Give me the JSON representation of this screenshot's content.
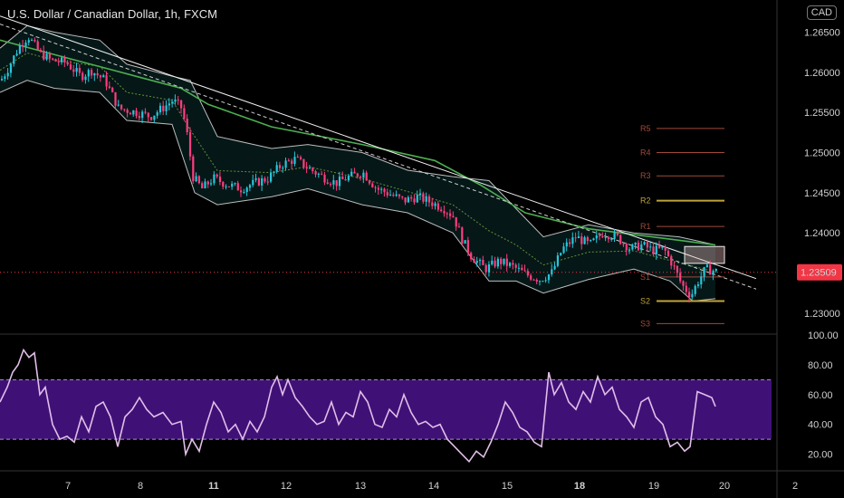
{
  "header": {
    "title": "U.S. Dollar / Canadian Dollar, 1h, FXCM",
    "currency": "CAD"
  },
  "colors": {
    "bull": "#26c6da",
    "bear": "#ff3d7f",
    "sma": "#4caf50",
    "bands": "#bdbdbd",
    "rsi_line": "#e1bee7",
    "rsi_band": "#4a148c",
    "price_badge": "#f23645"
  },
  "chart_data": [
    {
      "type": "candlestick",
      "symbol": "USDCAD",
      "interval": "1h",
      "price_axis": [
        "1.26500",
        "1.26000",
        "1.25500",
        "1.25000",
        "1.24500",
        "1.24000",
        "1.23500",
        "1.23000"
      ],
      "time_axis": [
        "7",
        "8",
        "11",
        "12",
        "13",
        "14",
        "15",
        "18",
        "19",
        "20",
        "2"
      ],
      "bold_time_labels": [
        "11",
        "18"
      ],
      "ylim": [
        1.2275,
        1.269
      ],
      "last_price": "1.23509",
      "close_path": [
        [
          0,
          1.259
        ],
        [
          8,
          1.2605
        ],
        [
          20,
          1.2632
        ],
        [
          30,
          1.2645
        ],
        [
          42,
          1.2625
        ],
        [
          55,
          1.2615
        ],
        [
          72,
          1.2612
        ],
        [
          88,
          1.2595
        ],
        [
          100,
          1.2602
        ],
        [
          115,
          1.259
        ],
        [
          130,
          1.2555
        ],
        [
          150,
          1.255
        ],
        [
          165,
          1.2545
        ],
        [
          178,
          1.2555
        ],
        [
          190,
          1.2565
        ],
        [
          200,
          1.2555
        ],
        [
          206,
          1.252
        ],
        [
          212,
          1.247
        ],
        [
          222,
          1.2455
        ],
        [
          235,
          1.2468
        ],
        [
          250,
          1.246
        ],
        [
          265,
          1.2455
        ],
        [
          280,
          1.2462
        ],
        [
          295,
          1.2468
        ],
        [
          310,
          1.2485
        ],
        [
          325,
          1.2492
        ],
        [
          340,
          1.248
        ],
        [
          355,
          1.247
        ],
        [
          370,
          1.2462
        ],
        [
          385,
          1.247
        ],
        [
          400,
          1.2475
        ],
        [
          415,
          1.2455
        ],
        [
          430,
          1.2448
        ],
        [
          445,
          1.244
        ],
        [
          460,
          1.2445
        ],
        [
          475,
          1.2438
        ],
        [
          490,
          1.243
        ],
        [
          500,
          1.242
        ],
        [
          510,
          1.239
        ],
        [
          520,
          1.237
        ],
        [
          535,
          1.2355
        ],
        [
          550,
          1.2365
        ],
        [
          565,
          1.2358
        ],
        [
          580,
          1.2348
        ],
        [
          595,
          1.2342
        ],
        [
          608,
          1.235
        ],
        [
          620,
          1.238
        ],
        [
          635,
          1.2395
        ],
        [
          650,
          1.2385
        ],
        [
          665,
          1.24
        ],
        [
          680,
          1.2395
        ],
        [
          695,
          1.238
        ],
        [
          708,
          1.2385
        ],
        [
          720,
          1.2378
        ],
        [
          732,
          1.238
        ],
        [
          742,
          1.236
        ],
        [
          752,
          1.2335
        ],
        [
          762,
          1.2322
        ],
        [
          770,
          1.234
        ],
        [
          778,
          1.2355
        ],
        [
          790,
          1.2352
        ]
      ],
      "sma": [
        [
          0,
          1.264
        ],
        [
          50,
          1.2625
        ],
        [
          100,
          1.261
        ],
        [
          150,
          1.2595
        ],
        [
          200,
          1.258
        ],
        [
          230,
          1.256
        ],
        [
          300,
          1.2532
        ],
        [
          400,
          1.251
        ],
        [
          480,
          1.249
        ],
        [
          530,
          1.246
        ],
        [
          580,
          1.2425
        ],
        [
          650,
          1.2405
        ],
        [
          720,
          1.2395
        ],
        [
          790,
          1.2385
        ]
      ],
      "bb_upper": [
        [
          0,
          1.263
        ],
        [
          30,
          1.2658
        ],
        [
          60,
          1.265
        ],
        [
          110,
          1.264
        ],
        [
          140,
          1.261
        ],
        [
          190,
          1.2595
        ],
        [
          210,
          1.259
        ],
        [
          240,
          1.252
        ],
        [
          300,
          1.2505
        ],
        [
          340,
          1.251
        ],
        [
          400,
          1.25
        ],
        [
          450,
          1.2478
        ],
        [
          500,
          1.247
        ],
        [
          540,
          1.2465
        ],
        [
          570,
          1.243
        ],
        [
          600,
          1.2395
        ],
        [
          650,
          1.241
        ],
        [
          700,
          1.24
        ],
        [
          750,
          1.2395
        ],
        [
          790,
          1.2385
        ]
      ],
      "bb_lower": [
        [
          0,
          1.2575
        ],
        [
          30,
          1.259
        ],
        [
          60,
          1.258
        ],
        [
          110,
          1.2575
        ],
        [
          140,
          1.254
        ],
        [
          190,
          1.2535
        ],
        [
          215,
          1.245
        ],
        [
          240,
          1.2435
        ],
        [
          300,
          1.2445
        ],
        [
          340,
          1.2455
        ],
        [
          400,
          1.2435
        ],
        [
          450,
          1.2425
        ],
        [
          500,
          1.24
        ],
        [
          540,
          1.234
        ],
        [
          570,
          1.234
        ],
        [
          600,
          1.2325
        ],
        [
          650,
          1.2342
        ],
        [
          700,
          1.2355
        ],
        [
          740,
          1.234
        ],
        [
          765,
          1.2315
        ],
        [
          790,
          1.2318
        ]
      ],
      "trendline": [
        [
          0,
          1.267
        ],
        [
          835,
          1.2343
        ]
      ],
      "trendline_dashed": [
        [
          0,
          1.266
        ],
        [
          835,
          1.233
        ]
      ],
      "pivots": [
        {
          "label": "R5",
          "value": 1.253,
          "color": "#a14a3a"
        },
        {
          "label": "R4",
          "value": 1.25,
          "color": "#a14a3a"
        },
        {
          "label": "R3",
          "value": 1.2471,
          "color": "#a14a3a"
        },
        {
          "label": "R2",
          "value": 1.244,
          "color": "#bfa43a"
        },
        {
          "label": "R1",
          "value": 1.2408,
          "color": "#a14a3a"
        },
        {
          "label": "S1",
          "value": 1.2345,
          "color": "#a14a3a"
        },
        {
          "label": "S2",
          "value": 1.2315,
          "color": "#bfa43a"
        },
        {
          "label": "S3",
          "value": 1.2287,
          "color": "#a14a3a"
        }
      ]
    },
    {
      "type": "line",
      "indicator": "RSI",
      "ylim": [
        10,
        100
      ],
      "y_ticks": [
        "100.00",
        "80.00",
        "60.00",
        "40.00",
        "20.00"
      ],
      "band": [
        30,
        70
      ],
      "x_y": [
        [
          0,
          55
        ],
        [
          8,
          65
        ],
        [
          14,
          75
        ],
        [
          20,
          80
        ],
        [
          26,
          90
        ],
        [
          32,
          85
        ],
        [
          38,
          88
        ],
        [
          44,
          60
        ],
        [
          50,
          65
        ],
        [
          58,
          40
        ],
        [
          66,
          30
        ],
        [
          74,
          32
        ],
        [
          82,
          28
        ],
        [
          90,
          45
        ],
        [
          98,
          35
        ],
        [
          106,
          52
        ],
        [
          114,
          55
        ],
        [
          122,
          45
        ],
        [
          130,
          25
        ],
        [
          138,
          45
        ],
        [
          146,
          50
        ],
        [
          154,
          58
        ],
        [
          162,
          50
        ],
        [
          170,
          45
        ],
        [
          180,
          48
        ],
        [
          190,
          40
        ],
        [
          200,
          42
        ],
        [
          205,
          20
        ],
        [
          212,
          30
        ],
        [
          220,
          22
        ],
        [
          228,
          40
        ],
        [
          236,
          55
        ],
        [
          244,
          48
        ],
        [
          252,
          35
        ],
        [
          260,
          40
        ],
        [
          268,
          30
        ],
        [
          276,
          42
        ],
        [
          284,
          35
        ],
        [
          292,
          45
        ],
        [
          300,
          65
        ],
        [
          306,
          72
        ],
        [
          312,
          60
        ],
        [
          318,
          70
        ],
        [
          326,
          58
        ],
        [
          334,
          52
        ],
        [
          342,
          45
        ],
        [
          350,
          40
        ],
        [
          358,
          42
        ],
        [
          366,
          55
        ],
        [
          374,
          40
        ],
        [
          382,
          48
        ],
        [
          390,
          45
        ],
        [
          398,
          62
        ],
        [
          406,
          55
        ],
        [
          414,
          40
        ],
        [
          422,
          38
        ],
        [
          430,
          50
        ],
        [
          438,
          45
        ],
        [
          446,
          60
        ],
        [
          454,
          48
        ],
        [
          462,
          40
        ],
        [
          470,
          42
        ],
        [
          478,
          38
        ],
        [
          486,
          40
        ],
        [
          494,
          30
        ],
        [
          502,
          25
        ],
        [
          510,
          20
        ],
        [
          518,
          15
        ],
        [
          526,
          22
        ],
        [
          534,
          18
        ],
        [
          542,
          28
        ],
        [
          550,
          40
        ],
        [
          558,
          55
        ],
        [
          566,
          48
        ],
        [
          574,
          38
        ],
        [
          582,
          35
        ],
        [
          590,
          28
        ],
        [
          598,
          25
        ],
        [
          606,
          75
        ],
        [
          612,
          60
        ],
        [
          620,
          68
        ],
        [
          628,
          55
        ],
        [
          636,
          50
        ],
        [
          644,
          62
        ],
        [
          652,
          55
        ],
        [
          660,
          72
        ],
        [
          668,
          60
        ],
        [
          676,
          65
        ],
        [
          684,
          50
        ],
        [
          692,
          45
        ],
        [
          700,
          38
        ],
        [
          708,
          55
        ],
        [
          716,
          58
        ],
        [
          724,
          45
        ],
        [
          732,
          40
        ],
        [
          740,
          25
        ],
        [
          748,
          28
        ],
        [
          756,
          22
        ],
        [
          762,
          25
        ],
        [
          770,
          62
        ],
        [
          778,
          60
        ],
        [
          786,
          58
        ],
        [
          790,
          52
        ]
      ]
    }
  ]
}
